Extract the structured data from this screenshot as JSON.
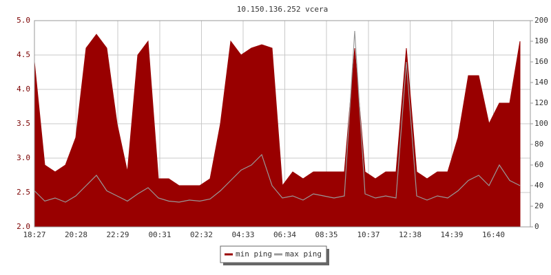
{
  "chart_data": {
    "type": "area",
    "title": "10.150.136.252 vcera",
    "x": [
      "18:27",
      "18:57",
      "19:27",
      "19:57",
      "20:27",
      "20:57",
      "21:27",
      "21:57",
      "22:27",
      "22:57",
      "23:27",
      "23:57",
      "00:27",
      "00:57",
      "01:27",
      "01:57",
      "02:27",
      "02:57",
      "03:27",
      "03:57",
      "04:27",
      "04:57",
      "05:27",
      "05:57",
      "06:27",
      "06:57",
      "07:27",
      "07:57",
      "08:27",
      "08:57",
      "09:27",
      "09:57",
      "10:27",
      "10:57",
      "11:27",
      "11:57",
      "12:27",
      "12:57",
      "13:27",
      "13:57",
      "14:27",
      "14:57",
      "15:27",
      "15:57",
      "16:27",
      "16:57",
      "17:27",
      "17:57"
    ],
    "series": [
      {
        "name": "min ping",
        "color": "#990000",
        "values": [
          4.4,
          2.9,
          2.8,
          2.9,
          3.3,
          4.6,
          4.8,
          4.6,
          3.5,
          2.8,
          4.5,
          4.7,
          2.7,
          2.7,
          2.6,
          2.6,
          2.6,
          2.7,
          3.5,
          4.7,
          4.5,
          4.6,
          4.65,
          4.6,
          2.6,
          2.8,
          2.7,
          2.8,
          2.8,
          2.8,
          2.8,
          4.6,
          2.8,
          2.7,
          2.8,
          2.8,
          4.6,
          2.8,
          2.7,
          2.8,
          2.8,
          3.3,
          4.2,
          4.2,
          3.5,
          3.8,
          3.8,
          4.7
        ]
      },
      {
        "name": "max ping",
        "color": "#999999",
        "axis": "y2",
        "values": [
          35,
          25,
          28,
          24,
          30,
          40,
          50,
          35,
          30,
          25,
          32,
          38,
          28,
          25,
          24,
          26,
          25,
          27,
          35,
          45,
          55,
          60,
          70,
          40,
          28,
          30,
          26,
          32,
          30,
          28,
          30,
          190,
          32,
          28,
          30,
          28,
          160,
          30,
          26,
          30,
          28,
          35,
          45,
          50,
          40,
          60,
          45,
          40
        ]
      }
    ],
    "ylim": [
      2,
      5
    ],
    "yticks": [
      {
        "value": 2,
        "label": "2.0"
      },
      2.5,
      {
        "value": 3,
        "label": "3.0"
      },
      3.5,
      {
        "value": 4,
        "label": "4.0"
      },
      4.5,
      {
        "value": 5,
        "label": "5.0"
      }
    ],
    "y2lim": [
      0,
      200
    ],
    "y2ticks": [
      0,
      20,
      40,
      60,
      80,
      100,
      120,
      140,
      160,
      180,
      200
    ],
    "xticks": [
      "18:27",
      "20:28",
      "22:29",
      "00:31",
      "02:32",
      "04:33",
      "06:34",
      "08:35",
      "10:37",
      "12:38",
      "14:39",
      "16:40"
    ],
    "grid": true
  }
}
